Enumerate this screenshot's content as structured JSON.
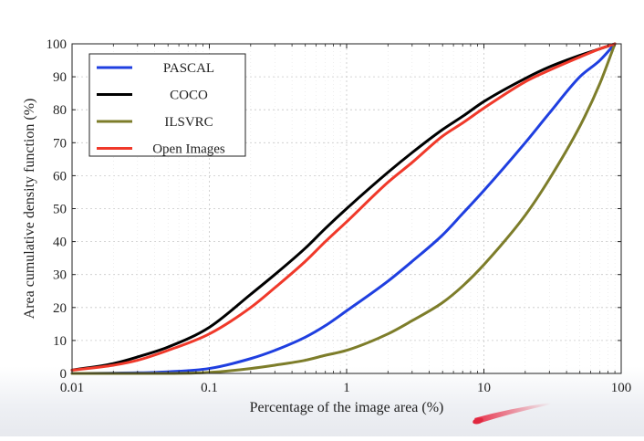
{
  "chart_data": {
    "type": "line",
    "title": "",
    "xlabel": "Percentage of the image area (%)",
    "ylabel": "Area cumulative density function (%)",
    "xscale": "log",
    "xlim": [
      0.01,
      100
    ],
    "ylim": [
      0,
      100
    ],
    "xticks": [
      0.01,
      0.1,
      1,
      10,
      100
    ],
    "xtick_labels": [
      "0.01",
      "0.1",
      "1",
      "10",
      "100"
    ],
    "yticks": [
      0,
      10,
      20,
      30,
      40,
      50,
      60,
      70,
      80,
      90,
      100
    ],
    "ytick_labels": [
      "0",
      "10",
      "20",
      "30",
      "40",
      "50",
      "60",
      "70",
      "80",
      "90",
      "100"
    ],
    "grid": "dashed",
    "legend_position": "top-left",
    "series": [
      {
        "name": "PASCAL",
        "color": "#1f3fe0",
        "x": [
          0.01,
          0.03,
          0.05,
          0.1,
          0.2,
          0.3,
          0.5,
          0.7,
          1,
          2,
          3,
          5,
          7,
          10,
          20,
          30,
          50,
          70,
          90
        ],
        "y": [
          0,
          0.2,
          0.5,
          1.5,
          4.5,
          7,
          11,
          14.5,
          19,
          28,
          34,
          42,
          48.5,
          55.5,
          70,
          79,
          90,
          95,
          100
        ]
      },
      {
        "name": "COCO",
        "color": "#000000",
        "x": [
          0.01,
          0.02,
          0.03,
          0.05,
          0.1,
          0.2,
          0.3,
          0.5,
          0.7,
          1,
          2,
          3,
          5,
          7,
          10,
          20,
          30,
          50,
          70,
          90
        ],
        "y": [
          1,
          3,
          5,
          8,
          14,
          24,
          30,
          38,
          44,
          50,
          61,
          67,
          74,
          78,
          82.5,
          89.5,
          93,
          96.5,
          98.5,
          100
        ]
      },
      {
        "name": "ILSVRC",
        "color": "#7d7d2a",
        "x": [
          0.01,
          0.05,
          0.1,
          0.2,
          0.3,
          0.5,
          0.7,
          1,
          2,
          3,
          5,
          7,
          10,
          20,
          30,
          50,
          70,
          90
        ],
        "y": [
          0,
          0,
          0.3,
          1.5,
          2.5,
          4,
          5.5,
          7,
          12,
          16,
          21.5,
          26.5,
          33,
          48,
          59,
          75,
          88,
          100
        ]
      },
      {
        "name": "Open Images",
        "color": "#f0392a",
        "x": [
          0.01,
          0.02,
          0.03,
          0.05,
          0.1,
          0.2,
          0.3,
          0.5,
          0.7,
          1,
          2,
          3,
          5,
          7,
          10,
          20,
          30,
          50,
          70,
          90
        ],
        "y": [
          1,
          2.5,
          4,
          7,
          12,
          20,
          26,
          34,
          40,
          46,
          58,
          64,
          72,
          76,
          80.5,
          88.5,
          92,
          96,
          98.5,
          100
        ]
      }
    ]
  }
}
